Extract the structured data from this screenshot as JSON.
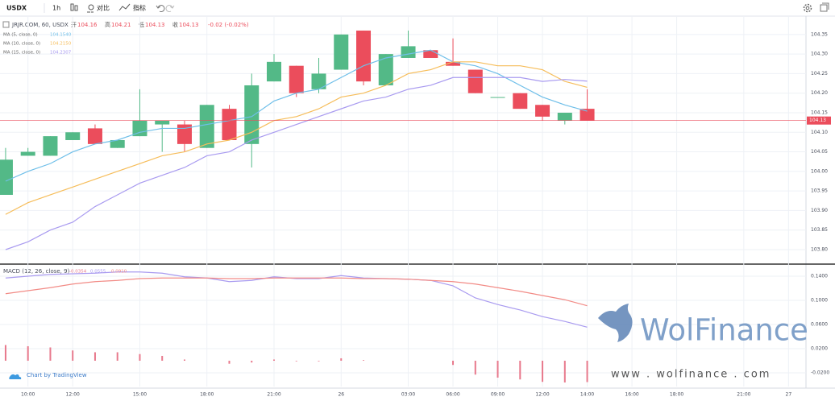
{
  "toolbar": {
    "symbol": "USDX",
    "interval": "1h",
    "compare": "对比",
    "indicators": "指标"
  },
  "chart_data": [
    {
      "type": "candlestick",
      "title": "JRJR.COM, 60, USDX",
      "header_labels": [
        "开",
        "高",
        "低",
        "收"
      ],
      "change": "-0.02 (-0.02%)",
      "up_color": "#53b987",
      "down_color": "#eb4d5c",
      "x": [
        0,
        1,
        2,
        3,
        4,
        5,
        6,
        7,
        8,
        9,
        10,
        11,
        12,
        13,
        14,
        15,
        16,
        17,
        18,
        19,
        20,
        21,
        22,
        23,
        24,
        25,
        26
      ],
      "open": [
        103.94,
        104.04,
        104.04,
        104.08,
        104.11,
        104.06,
        104.09,
        104.12,
        104.12,
        104.06,
        104.16,
        104.07,
        104.23,
        104.27,
        104.21,
        104.26,
        104.36,
        104.22,
        104.29,
        104.31,
        104.28,
        104.26,
        104.19,
        104.2,
        104.17,
        104.13,
        104.16
      ],
      "high": [
        104.06,
        104.06,
        104.09,
        104.1,
        104.12,
        104.08,
        104.21,
        104.13,
        104.13,
        104.17,
        104.17,
        104.25,
        104.3,
        104.27,
        104.29,
        104.35,
        104.36,
        104.3,
        104.36,
        104.31,
        104.34,
        104.26,
        104.19,
        104.2,
        104.17,
        104.15,
        104.21
      ],
      "low": [
        103.94,
        104.04,
        104.04,
        104.08,
        104.07,
        104.06,
        104.09,
        104.05,
        104.05,
        104.06,
        104.08,
        104.01,
        104.23,
        104.19,
        104.2,
        104.26,
        104.22,
        104.22,
        104.29,
        104.29,
        104.27,
        104.2,
        104.19,
        104.16,
        104.13,
        104.12,
        104.13
      ],
      "close": [
        104.03,
        104.05,
        104.09,
        104.1,
        104.07,
        104.08,
        104.13,
        104.13,
        104.07,
        104.17,
        104.08,
        104.22,
        104.28,
        104.2,
        104.25,
        104.35,
        104.23,
        104.3,
        104.32,
        104.29,
        104.27,
        104.2,
        104.19,
        104.16,
        104.14,
        104.15,
        104.13
      ],
      "ma": [
        {
          "name": "MA (5, close, 0)",
          "legend_value": "104.1540",
          "color": "#6fbfe9",
          "values": [
            103.975,
            104.0,
            104.02,
            104.05,
            104.07,
            104.08,
            104.1,
            104.11,
            104.11,
            104.12,
            104.13,
            104.14,
            104.18,
            104.2,
            104.21,
            104.24,
            104.27,
            104.29,
            104.3,
            104.31,
            104.28,
            104.27,
            104.25,
            104.22,
            104.19,
            104.17,
            104.154
          ]
        },
        {
          "name": "MA (10, close, 0)",
          "legend_value": "104.2150",
          "color": "#f6bd5a",
          "values": [
            103.89,
            103.92,
            103.94,
            103.96,
            103.98,
            104.0,
            104.02,
            104.04,
            104.05,
            104.07,
            104.08,
            104.1,
            104.13,
            104.14,
            104.16,
            104.19,
            104.2,
            104.22,
            104.25,
            104.26,
            104.28,
            104.28,
            104.27,
            104.27,
            104.26,
            104.23,
            104.215
          ]
        },
        {
          "name": "MA (15, close, 0)",
          "legend_value": "104.2307",
          "color": "#a99bf0",
          "values": [
            103.8,
            103.82,
            103.85,
            103.87,
            103.91,
            103.94,
            103.97,
            103.99,
            104.01,
            104.04,
            104.05,
            104.08,
            104.1,
            104.12,
            104.14,
            104.16,
            104.18,
            104.19,
            104.21,
            104.22,
            104.24,
            104.24,
            104.24,
            104.24,
            104.23,
            104.235,
            104.2307
          ]
        }
      ],
      "last_price_color": "#eb4d5c",
      "xlim": [
        -0.25,
        35.78
      ],
      "xticks": [
        {
          "value": 1,
          "label": "10:00"
        },
        {
          "value": 3,
          "label": "12:00"
        },
        {
          "value": 6,
          "label": "15:00"
        },
        {
          "value": 9,
          "label": "18:00"
        },
        {
          "value": 12,
          "label": "21:00"
        },
        {
          "value": 15,
          "label": "26"
        },
        {
          "value": 18,
          "label": "03:00"
        },
        {
          "value": 20,
          "label": "06:00"
        },
        {
          "value": 22,
          "label": "09:00"
        },
        {
          "value": 24,
          "label": "12:00"
        },
        {
          "value": 26,
          "label": "14:00"
        },
        {
          "value": 28,
          "label": "16:00"
        },
        {
          "value": 30,
          "label": "18:00"
        },
        {
          "value": 33,
          "label": "21:00"
        },
        {
          "value": 35,
          "label": "27"
        }
      ],
      "ylim": [
        103.765,
        104.397
      ],
      "yticks": [
        {
          "value": 103.8,
          "label": "103.80"
        },
        103.85,
        {
          "value": 103.9,
          "label": "103.90"
        },
        103.95,
        {
          "value": 104,
          "label": "104.00"
        },
        104.05,
        {
          "value": 104.1,
          "label": "104.10"
        },
        104.15,
        {
          "value": 104.2,
          "label": "104.20"
        },
        104.25,
        {
          "value": 104.3,
          "label": "104.30"
        },
        104.35
      ],
      "grid": true
    },
    {
      "type": "macd",
      "title": "MACD (12, 26, close, 9)",
      "legend_values": [
        "-0.0354",
        "0.0555",
        "0.0910"
      ],
      "x": [
        0,
        1,
        2,
        3,
        4,
        5,
        6,
        7,
        8,
        9,
        10,
        11,
        12,
        13,
        14,
        15,
        16,
        17,
        18,
        19,
        20,
        21,
        22,
        23,
        24,
        25,
        26
      ],
      "histogram": {
        "color": "#e8798c",
        "values": [
          0.026,
          0.024,
          0.022,
          0.017,
          0.014,
          0.014,
          0.011,
          0.008,
          0.002,
          0,
          -0.005,
          -0.003,
          0.002,
          -0.001,
          -0.001,
          0.004,
          0.001,
          0,
          0,
          0,
          -0.007,
          -0.023,
          -0.028,
          -0.031,
          -0.035,
          -0.036,
          -0.0354
        ]
      },
      "series": [
        {
          "color": "#a99bf0",
          "values": [
            0.137,
            0.14,
            0.143,
            0.144,
            0.145,
            0.147,
            0.147,
            0.145,
            0.139,
            0.137,
            0.131,
            0.133,
            0.139,
            0.136,
            0.136,
            0.141,
            0.137,
            0.136,
            0.135,
            0.133,
            0.124,
            0.104,
            0.093,
            0.084,
            0.073,
            0.065,
            0.0555
          ]
        },
        {
          "color": "#f28b86",
          "values": [
            0.111,
            0.116,
            0.121,
            0.127,
            0.131,
            0.133,
            0.136,
            0.137,
            0.137,
            0.137,
            0.136,
            0.136,
            0.137,
            0.137,
            0.137,
            0.137,
            0.136,
            0.136,
            0.135,
            0.133,
            0.131,
            0.127,
            0.121,
            0.115,
            0.108,
            0.101,
            0.091
          ]
        }
      ],
      "xlim": [
        -0.25,
        35.78
      ],
      "ylim": [
        -0.0427,
        0.1573
      ],
      "yticks": [
        {
          "value": -0.02,
          "label": "-0.0200"
        },
        {
          "value": 0.02,
          "label": "0.0200"
        },
        {
          "value": 0.06,
          "label": "0.0600"
        },
        {
          "value": 0.1,
          "label": "0.1000"
        },
        {
          "value": 0.14,
          "label": "0.1400"
        }
      ],
      "grid": true
    }
  ],
  "credit": "Chart by TradingView",
  "watermark": {
    "brand": "WolFinance",
    "url": "www . wolfinance . com"
  }
}
